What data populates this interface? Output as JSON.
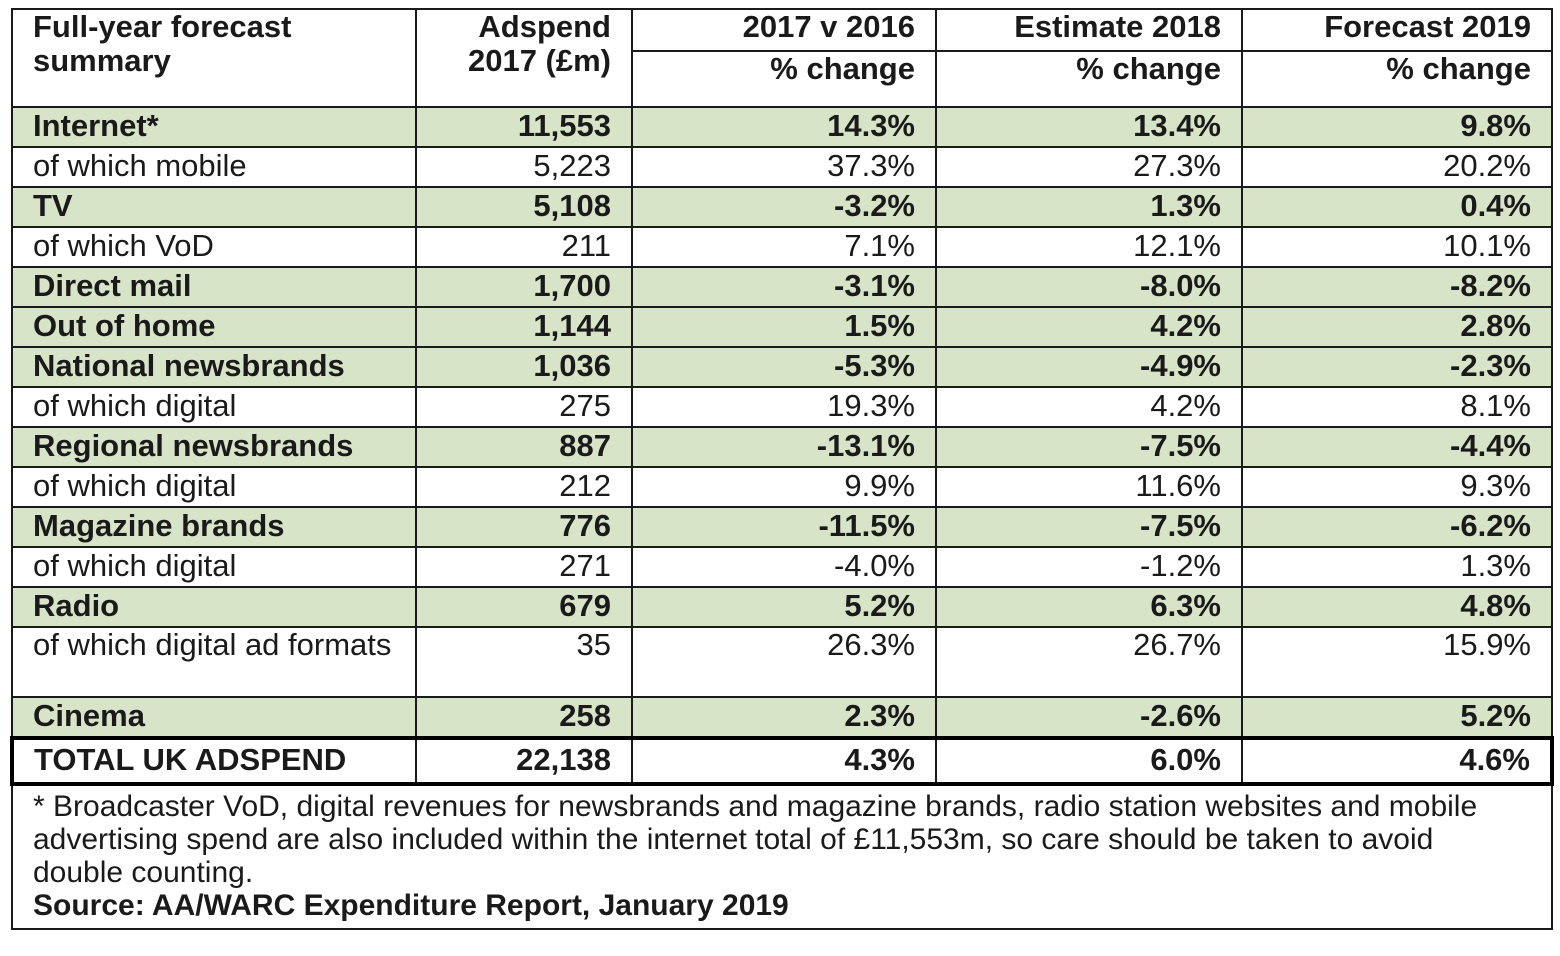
{
  "table": {
    "header": {
      "col0": "Full-year forecast summary",
      "col1": "Adspend 2017 (£m)",
      "col2_top": "2017 v 2016",
      "col3_top": "Estimate 2018",
      "col4_top": "Forecast 2019",
      "col2_sub": "% change",
      "col3_sub": "% change",
      "col4_sub": "% change"
    },
    "rows": [
      {
        "label": "Internet*",
        "adspend": "11,553",
        "chg2017": "14.3%",
        "est2018": "13.4%",
        "fc2019": "9.8%",
        "major": true
      },
      {
        "label": "of which mobile",
        "adspend": "5,223",
        "chg2017": "37.3%",
        "est2018": "27.3%",
        "fc2019": "20.2%",
        "major": false
      },
      {
        "label": "TV",
        "adspend": "5,108",
        "chg2017": "-3.2%",
        "est2018": "1.3%",
        "fc2019": "0.4%",
        "major": true
      },
      {
        "label": "of which VoD",
        "adspend": "211",
        "chg2017": "7.1%",
        "est2018": "12.1%",
        "fc2019": "10.1%",
        "major": false
      },
      {
        "label": "Direct mail",
        "adspend": "1,700",
        "chg2017": "-3.1%",
        "est2018": "-8.0%",
        "fc2019": "-8.2%",
        "major": true
      },
      {
        "label": "Out of home",
        "adspend": "1,144",
        "chg2017": "1.5%",
        "est2018": "4.2%",
        "fc2019": "2.8%",
        "major": true
      },
      {
        "label": "National newsbrands",
        "adspend": "1,036",
        "chg2017": "-5.3%",
        "est2018": "-4.9%",
        "fc2019": "-2.3%",
        "major": true
      },
      {
        "label": "of which digital",
        "adspend": "275",
        "chg2017": "19.3%",
        "est2018": "4.2%",
        "fc2019": "8.1%",
        "major": false
      },
      {
        "label": "Regional newsbrands",
        "adspend": "887",
        "chg2017": "-13.1%",
        "est2018": "-7.5%",
        "fc2019": "-4.4%",
        "major": true
      },
      {
        "label": "of which digital",
        "adspend": "212",
        "chg2017": "9.9%",
        "est2018": "11.6%",
        "fc2019": "9.3%",
        "major": false
      },
      {
        "label": "Magazine brands",
        "adspend": "776",
        "chg2017": "-11.5%",
        "est2018": "-7.5%",
        "fc2019": "-6.2%",
        "major": true
      },
      {
        "label": "of which digital",
        "adspend": "271",
        "chg2017": "-4.0%",
        "est2018": "-1.2%",
        "fc2019": "1.3%",
        "major": false
      },
      {
        "label": "Radio",
        "adspend": "679",
        "chg2017": "5.2%",
        "est2018": "6.3%",
        "fc2019": "4.8%",
        "major": true
      },
      {
        "label": "of which digital ad formats",
        "adspend": "35",
        "chg2017": "26.3%",
        "est2018": "26.7%",
        "fc2019": "15.9%",
        "major": false
      },
      {
        "label": "Cinema",
        "adspend": "258",
        "chg2017": "2.3%",
        "est2018": "-2.6%",
        "fc2019": "5.2%",
        "major": true
      }
    ],
    "total": {
      "label": "TOTAL UK ADSPEND",
      "adspend": "22,138",
      "chg2017": "4.3%",
      "est2018": "6.0%",
      "fc2019": "4.6%"
    },
    "footnote": "* Broadcaster VoD, digital revenues for newsbrands and magazine brands, radio station websites and mobile advertising spend are also included within the internet total of £11,553m, so care should be taken to avoid double counting.",
    "source": "Source: AA/WARC Expenditure Report, January 2019"
  },
  "colors": {
    "major_row_bg": "#d8e4c8",
    "border": "#1a1a1a"
  }
}
